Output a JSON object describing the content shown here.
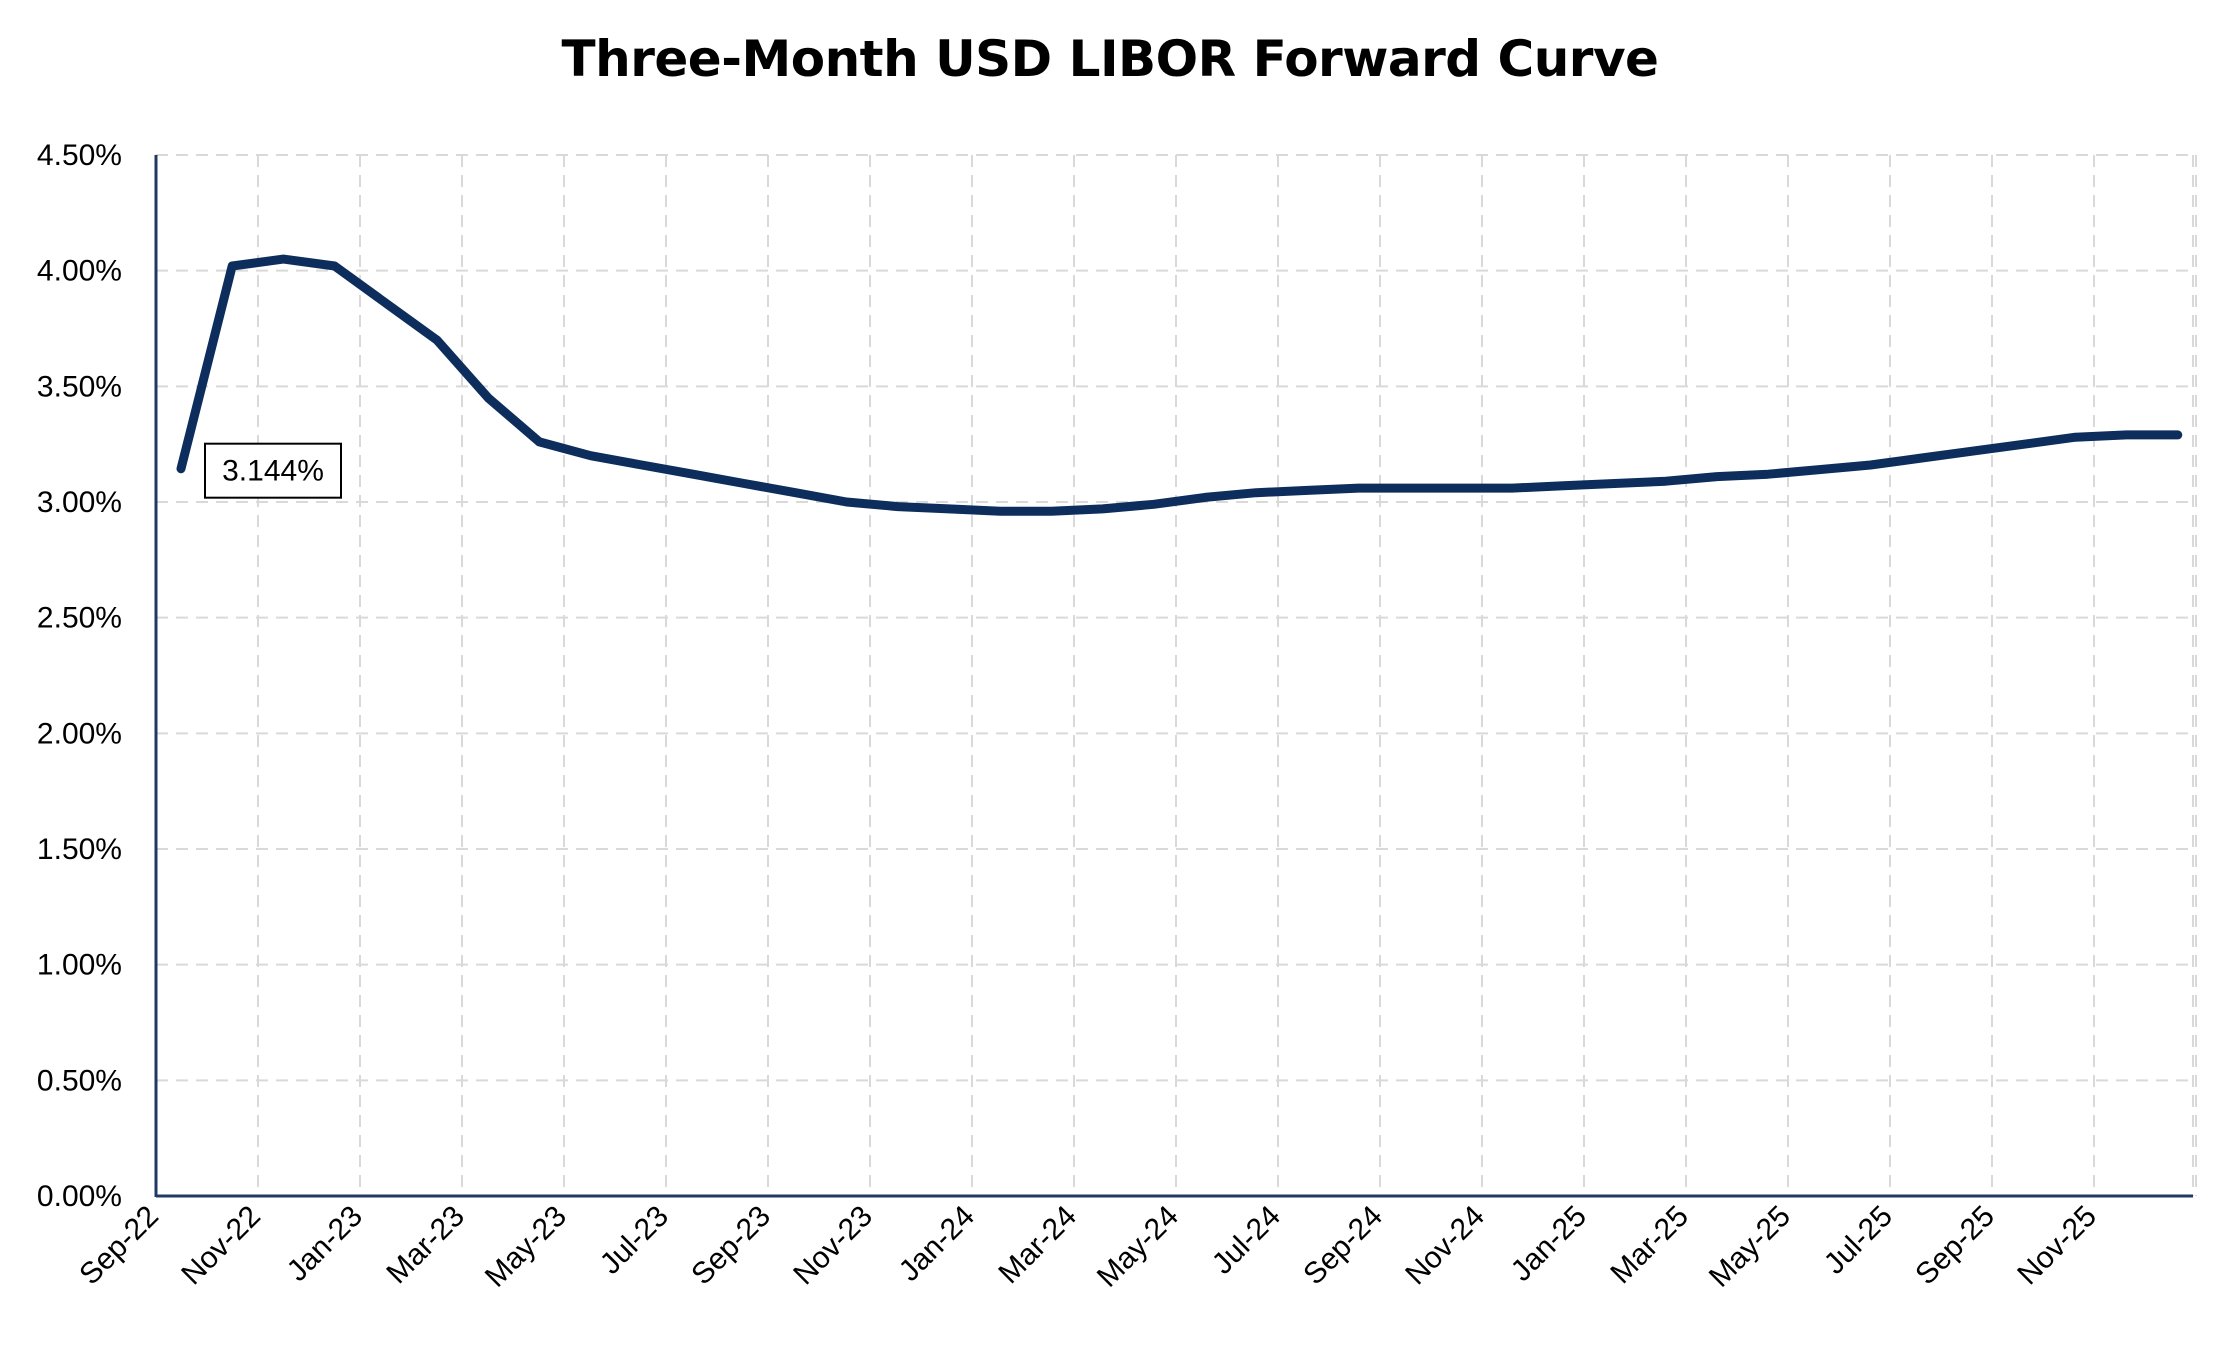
{
  "chart_data": {
    "type": "line",
    "title": "Three-Month USD LIBOR Forward Curve",
    "xlabel": "",
    "ylabel": "",
    "ylim": [
      0,
      0.045
    ],
    "y_ticks": [
      0,
      0.005,
      0.01,
      0.015,
      0.02,
      0.025,
      0.03,
      0.035,
      0.04,
      0.045
    ],
    "y_tick_labels": [
      "0.00%",
      "0.50%",
      "1.00%",
      "1.50%",
      "2.00%",
      "2.50%",
      "3.00%",
      "3.50%",
      "4.00%",
      "4.50%"
    ],
    "x_tick_labels": [
      "Sep-22",
      "Nov-22",
      "Jan-23",
      "Mar-23",
      "May-23",
      "Jul-23",
      "Sep-23",
      "Nov-23",
      "Jan-24",
      "Mar-24",
      "May-24",
      "Jul-24",
      "Sep-24",
      "Nov-24",
      "Jan-25",
      "Mar-25",
      "May-25",
      "Jul-25",
      "Sep-25",
      "Nov-25"
    ],
    "grid": true,
    "legend": "none",
    "series": [
      {
        "color": "#0d2e5c",
        "x": [
          "Sep-22",
          "Oct-22",
          "Nov-22",
          "Dec-22",
          "Jan-23",
          "Feb-23",
          "Mar-23",
          "Apr-23",
          "May-23",
          "Jun-23",
          "Jul-23",
          "Aug-23",
          "Sep-23",
          "Oct-23",
          "Nov-23",
          "Dec-23",
          "Jan-24",
          "Feb-24",
          "Mar-24",
          "Apr-24",
          "May-24",
          "Jun-24",
          "Jul-24",
          "Aug-24",
          "Sep-24",
          "Oct-24",
          "Nov-24",
          "Dec-24",
          "Jan-25",
          "Feb-25",
          "Mar-25",
          "Apr-25",
          "May-25",
          "Jun-25",
          "Jul-25",
          "Aug-25",
          "Sep-25",
          "Oct-25",
          "Nov-25",
          "Dec-25"
        ],
        "values": [
          0.03144,
          0.0402,
          0.0405,
          0.0402,
          0.0386,
          0.037,
          0.0345,
          0.0326,
          0.032,
          0.0316,
          0.0312,
          0.0308,
          0.0304,
          0.03,
          0.0298,
          0.0297,
          0.0296,
          0.0296,
          0.0297,
          0.0299,
          0.0302,
          0.0304,
          0.0305,
          0.0306,
          0.0306,
          0.0306,
          0.0306,
          0.0307,
          0.0308,
          0.0309,
          0.0311,
          0.0312,
          0.0314,
          0.0316,
          0.0319,
          0.0322,
          0.0325,
          0.0328,
          0.0329,
          0.0329
        ]
      }
    ],
    "annotations": [
      {
        "text": "3.144%",
        "x": "Sep-22",
        "y": 0.03144
      }
    ]
  }
}
